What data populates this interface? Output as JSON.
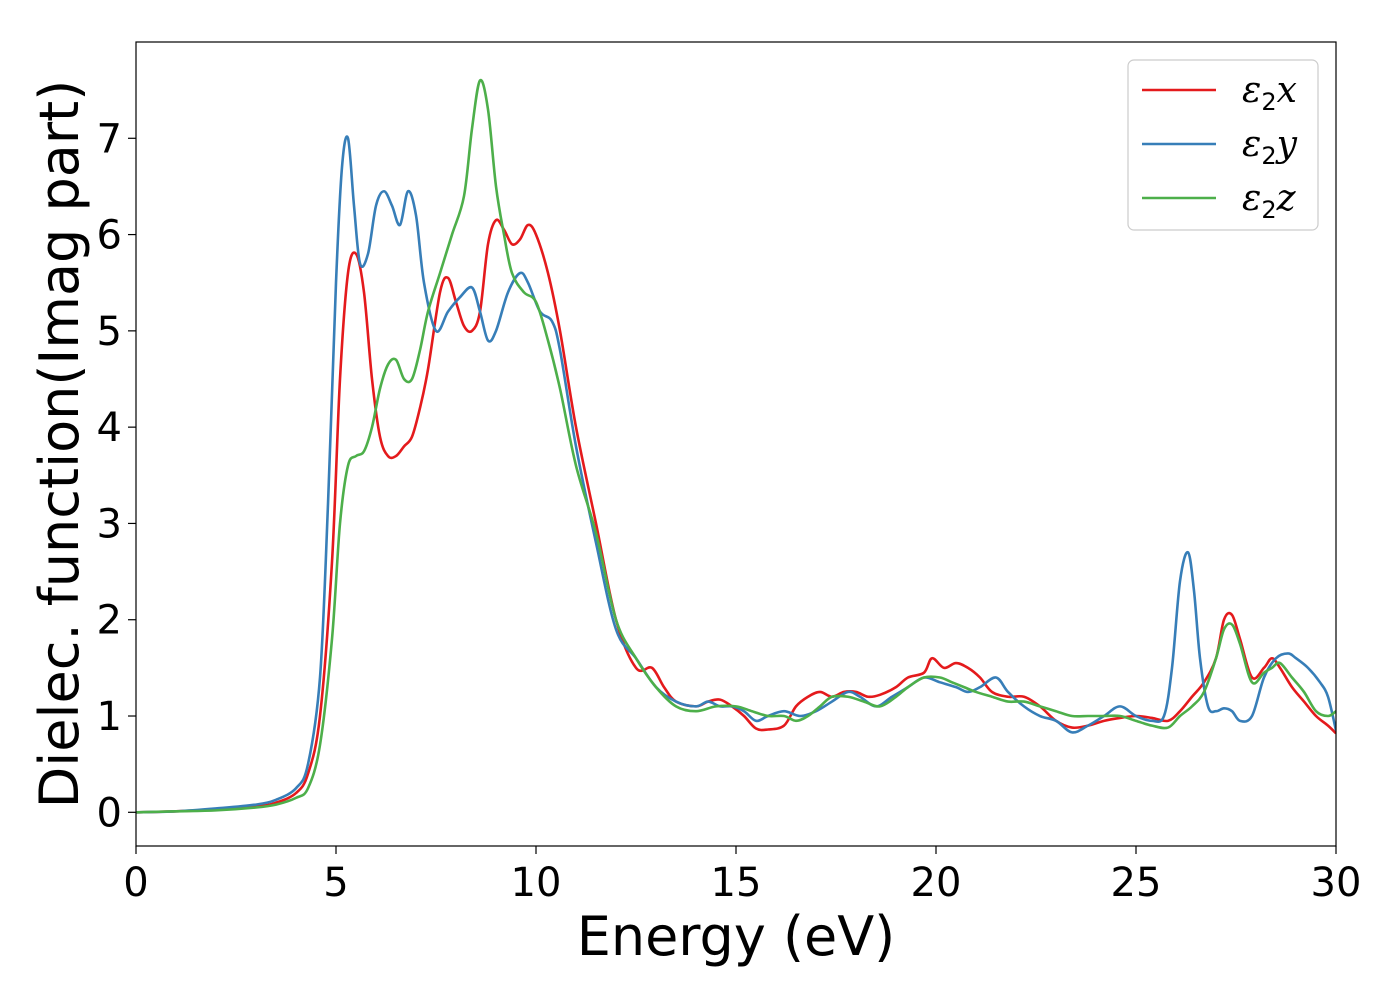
{
  "chart_data": {
    "type": "line",
    "title": "",
    "xlabel": "Energy (eV)",
    "ylabel": "Dielec. function(Imag part)",
    "xlim": [
      0,
      30
    ],
    "ylim": [
      -0.35,
      8.0
    ],
    "xticks": [
      0,
      5,
      10,
      15,
      20,
      25,
      30
    ],
    "yticks": [
      0,
      1,
      2,
      3,
      4,
      5,
      6,
      7
    ],
    "grid": false,
    "legend_position": "top-right",
    "series": [
      {
        "name": "ε2x",
        "legend": {
          "base": "ε",
          "sub": "2",
          "suffix": "x"
        },
        "color": "#e41a1c",
        "x": [
          0,
          1,
          2,
          3,
          3.5,
          4,
          4.3,
          4.6,
          4.9,
          5.1,
          5.3,
          5.5,
          5.7,
          5.9,
          6.1,
          6.3,
          6.5,
          6.7,
          6.9,
          7.1,
          7.3,
          7.6,
          7.8,
          8.0,
          8.2,
          8.4,
          8.6,
          8.8,
          9.0,
          9.2,
          9.4,
          9.6,
          9.8,
          10.0,
          10.3,
          10.6,
          11.0,
          11.5,
          12.0,
          12.5,
          12.9,
          13.2,
          13.5,
          14.0,
          14.3,
          14.6,
          14.9,
          15.2,
          15.5,
          15.8,
          16.2,
          16.5,
          16.8,
          17.1,
          17.4,
          17.7,
          18.0,
          18.3,
          18.6,
          19.0,
          19.3,
          19.7,
          19.9,
          20.2,
          20.5,
          20.8,
          21.1,
          21.4,
          21.8,
          22.2,
          22.6,
          23.0,
          23.4,
          23.8,
          24.2,
          24.6,
          25.0,
          25.4,
          25.8,
          26.1,
          26.4,
          26.7,
          27.0,
          27.2,
          27.4,
          27.6,
          27.9,
          28.2,
          28.4,
          28.6,
          28.9,
          29.2,
          29.5,
          29.8,
          30.0
        ],
        "y": [
          0,
          0.01,
          0.03,
          0.06,
          0.1,
          0.2,
          0.4,
          1.0,
          2.6,
          4.5,
          5.6,
          5.8,
          5.4,
          4.5,
          3.9,
          3.7,
          3.7,
          3.8,
          3.9,
          4.2,
          4.6,
          5.4,
          5.55,
          5.3,
          5.05,
          5.0,
          5.2,
          5.9,
          6.15,
          6.05,
          5.9,
          5.95,
          6.1,
          6.0,
          5.6,
          5.0,
          4.0,
          3.0,
          2.0,
          1.5,
          1.5,
          1.3,
          1.15,
          1.1,
          1.15,
          1.17,
          1.1,
          1.0,
          0.87,
          0.86,
          0.9,
          1.1,
          1.2,
          1.25,
          1.2,
          1.25,
          1.25,
          1.2,
          1.22,
          1.3,
          1.4,
          1.45,
          1.6,
          1.5,
          1.55,
          1.5,
          1.4,
          1.25,
          1.2,
          1.2,
          1.1,
          0.95,
          0.88,
          0.9,
          0.95,
          0.98,
          1.0,
          0.98,
          0.95,
          1.05,
          1.2,
          1.35,
          1.6,
          2.0,
          2.05,
          1.8,
          1.4,
          1.5,
          1.6,
          1.5,
          1.3,
          1.15,
          1.0,
          0.9,
          0.82
        ]
      },
      {
        "name": "ε2y",
        "legend": {
          "base": "ε",
          "sub": "2",
          "suffix": "y"
        },
        "color": "#377eb8",
        "x": [
          0,
          1,
          2,
          3,
          3.5,
          4,
          4.3,
          4.6,
          4.8,
          5.0,
          5.15,
          5.3,
          5.45,
          5.6,
          5.8,
          6.0,
          6.2,
          6.4,
          6.6,
          6.8,
          7.0,
          7.2,
          7.5,
          7.8,
          8.1,
          8.4,
          8.6,
          8.8,
          9.0,
          9.3,
          9.6,
          9.8,
          10.1,
          10.4,
          10.6,
          11.0,
          11.5,
          12.0,
          12.5,
          13.0,
          13.5,
          14.0,
          14.3,
          14.6,
          14.9,
          15.2,
          15.5,
          15.8,
          16.2,
          16.6,
          17.0,
          17.4,
          17.8,
          18.1,
          18.5,
          18.9,
          19.3,
          19.7,
          20.1,
          20.5,
          20.8,
          21.1,
          21.5,
          21.8,
          22.2,
          22.6,
          23.0,
          23.4,
          23.8,
          24.2,
          24.6,
          25.0,
          25.4,
          25.7,
          25.9,
          26.1,
          26.3,
          26.45,
          26.6,
          26.8,
          27.0,
          27.2,
          27.4,
          27.6,
          27.9,
          28.2,
          28.5,
          28.8,
          29.0,
          29.3,
          29.6,
          29.8,
          30.0
        ],
        "y": [
          0,
          0.01,
          0.04,
          0.08,
          0.13,
          0.25,
          0.5,
          1.4,
          3.2,
          5.5,
          6.7,
          7.0,
          6.3,
          5.7,
          5.8,
          6.3,
          6.45,
          6.3,
          6.1,
          6.45,
          6.2,
          5.5,
          5.0,
          5.2,
          5.35,
          5.45,
          5.2,
          4.9,
          5.0,
          5.4,
          5.6,
          5.5,
          5.2,
          5.1,
          4.8,
          3.8,
          2.8,
          1.9,
          1.6,
          1.3,
          1.15,
          1.1,
          1.15,
          1.1,
          1.1,
          1.05,
          0.95,
          1.0,
          1.05,
          1.0,
          1.05,
          1.15,
          1.25,
          1.2,
          1.1,
          1.2,
          1.3,
          1.4,
          1.35,
          1.3,
          1.25,
          1.3,
          1.4,
          1.25,
          1.1,
          1.0,
          0.95,
          0.83,
          0.9,
          1.0,
          1.1,
          1.0,
          0.95,
          1.0,
          1.5,
          2.4,
          2.7,
          2.3,
          1.6,
          1.1,
          1.05,
          1.08,
          1.05,
          0.95,
          1.0,
          1.4,
          1.6,
          1.65,
          1.6,
          1.5,
          1.35,
          1.2,
          0.85
        ]
      },
      {
        "name": "ε2z",
        "legend": {
          "base": "ε",
          "sub": "2",
          "suffix": "z"
        },
        "color": "#4daf4a",
        "x": [
          0,
          1,
          2,
          3,
          3.5,
          4,
          4.3,
          4.6,
          4.9,
          5.1,
          5.3,
          5.5,
          5.7,
          5.9,
          6.1,
          6.3,
          6.5,
          6.7,
          6.9,
          7.1,
          7.3,
          7.6,
          7.9,
          8.2,
          8.4,
          8.6,
          8.8,
          9.0,
          9.2,
          9.4,
          9.7,
          10.0,
          10.3,
          10.6,
          11.0,
          11.5,
          12.0,
          12.5,
          13.0,
          13.5,
          14.0,
          14.5,
          15.0,
          15.4,
          15.8,
          16.2,
          16.5,
          16.8,
          17.1,
          17.4,
          17.8,
          18.2,
          18.6,
          19.0,
          19.3,
          19.7,
          20.1,
          20.4,
          20.7,
          21.0,
          21.4,
          21.8,
          22.2,
          22.6,
          23.0,
          23.4,
          23.8,
          24.2,
          24.6,
          25.0,
          25.4,
          25.8,
          26.1,
          26.4,
          26.7,
          27.0,
          27.2,
          27.4,
          27.6,
          27.9,
          28.2,
          28.4,
          28.6,
          28.9,
          29.2,
          29.5,
          29.8,
          30.0
        ],
        "y": [
          0,
          0.01,
          0.02,
          0.05,
          0.08,
          0.15,
          0.25,
          0.7,
          1.8,
          3.0,
          3.6,
          3.7,
          3.75,
          4.0,
          4.4,
          4.65,
          4.7,
          4.5,
          4.5,
          4.8,
          5.2,
          5.6,
          6.0,
          6.4,
          7.1,
          7.6,
          7.3,
          6.5,
          6.0,
          5.6,
          5.4,
          5.3,
          4.9,
          4.4,
          3.6,
          2.9,
          2.0,
          1.6,
          1.3,
          1.1,
          1.05,
          1.1,
          1.1,
          1.05,
          1.0,
          1.0,
          0.95,
          1.0,
          1.1,
          1.2,
          1.2,
          1.15,
          1.1,
          1.2,
          1.3,
          1.4,
          1.4,
          1.35,
          1.3,
          1.25,
          1.2,
          1.15,
          1.15,
          1.1,
          1.05,
          1.0,
          1.0,
          1.0,
          1.0,
          0.95,
          0.9,
          0.88,
          1.0,
          1.1,
          1.25,
          1.6,
          1.9,
          1.95,
          1.75,
          1.35,
          1.45,
          1.5,
          1.55,
          1.4,
          1.25,
          1.05,
          1.0,
          1.05
        ]
      }
    ]
  }
}
